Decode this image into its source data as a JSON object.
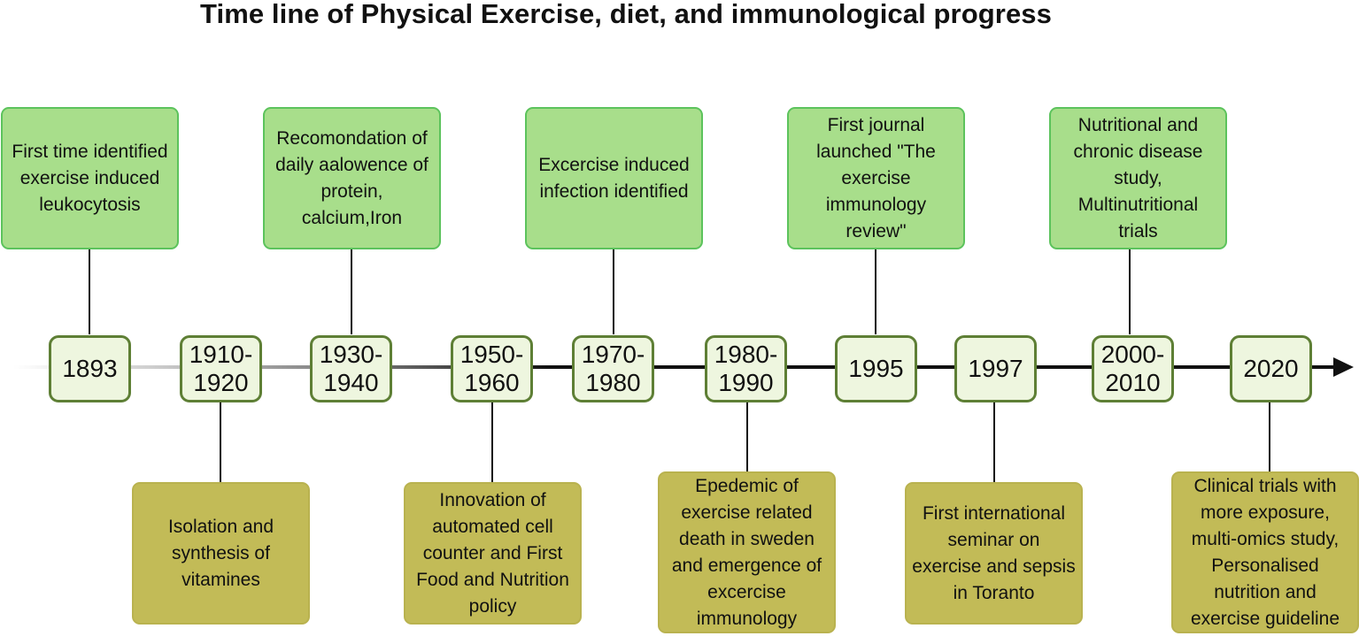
{
  "title": "Time line of Physical Exercise, diet, and immunological progress",
  "timeline": {
    "years": [
      {
        "label": "1893"
      },
      {
        "label": "1910-\n1920"
      },
      {
        "label": "1930-\n1940"
      },
      {
        "label": "1950-\n1960"
      },
      {
        "label": "1970-\n1980"
      },
      {
        "label": "1980-\n1990"
      },
      {
        "label": "1995"
      },
      {
        "label": "1997"
      },
      {
        "label": "2000-\n2010"
      },
      {
        "label": "2020"
      }
    ],
    "top_events": [
      {
        "text": "First time identified exercise induced leukocytosis"
      },
      {
        "text": "Recomondation of daily aalowence of protein, calcium,Iron"
      },
      {
        "text": "Excercise induced infection identified"
      },
      {
        "text": "First journal launched \"The exercise immunology review\""
      },
      {
        "text": "Nutritional and chronic disease study, Multinutritional trials"
      }
    ],
    "bottom_events": [
      {
        "text": "Isolation and synthesis of vitamines"
      },
      {
        "text": "Innovation of automated cell counter and First Food and Nutrition policy"
      },
      {
        "text": "Epedemic of exercise related death in sweden and emergence of excercise immunology"
      },
      {
        "text": "First international seminar on exercise and sepsis in Toranto"
      },
      {
        "text": "Clinical trials with more exposure, multi-omics study, Personalised nutrition and exercise guideline"
      }
    ]
  },
  "colors": {
    "top_box_fill": "#a8de8b",
    "bottom_box_fill": "#c2bb57",
    "year_box_fill": "#eef6df",
    "year_box_border": "#5e7f35"
  }
}
